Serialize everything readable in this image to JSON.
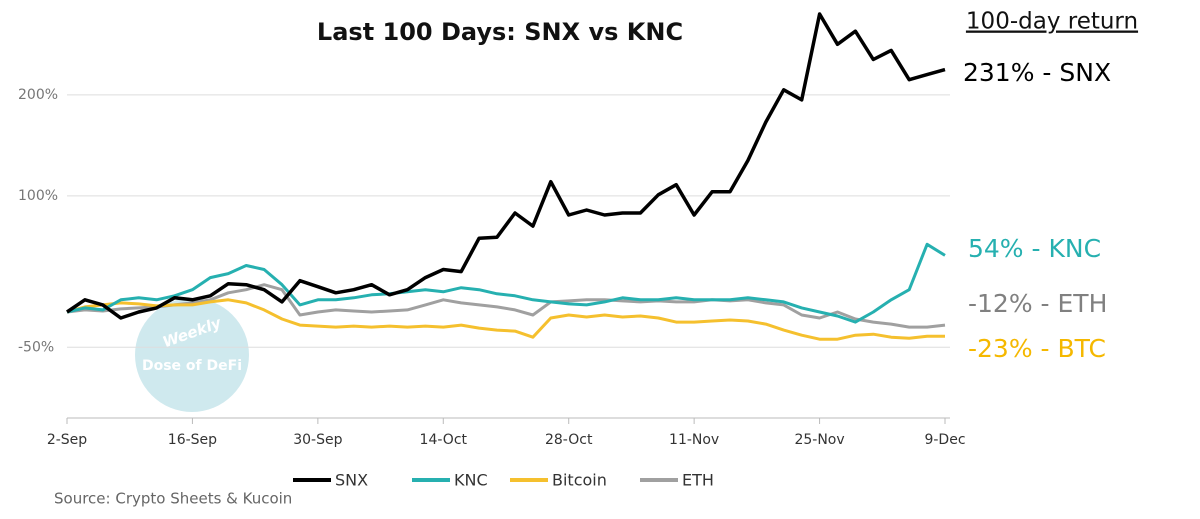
{
  "chart_data": {
    "type": "line",
    "title": "Last 100 Days: SNX vs KNC",
    "categories": [
      "2-Sep",
      null,
      null,
      null,
      null,
      null,
      null,
      "16-Sep",
      null,
      null,
      null,
      null,
      null,
      null,
      "30-Sep",
      null,
      null,
      null,
      null,
      null,
      null,
      "14-Oct",
      null,
      null,
      null,
      null,
      null,
      null,
      "28-Oct",
      null,
      null,
      null,
      null,
      null,
      null,
      "11-Nov",
      null,
      null,
      null,
      null,
      null,
      null,
      "25-Nov",
      null,
      null,
      null,
      null,
      null,
      null,
      "9-Dec"
    ],
    "series": [
      {
        "name": "SNX",
        "color": "#000000",
        "values": [
          -15,
          -3,
          -8,
          -21,
          -15,
          -11,
          -1,
          -3,
          1,
          13,
          12,
          7,
          -5,
          16,
          10,
          4,
          7,
          12,
          2,
          7,
          19,
          27,
          25,
          58,
          59,
          83,
          70,
          114,
          81,
          86,
          81,
          83,
          83,
          101,
          111,
          81,
          104,
          104,
          135,
          173,
          205,
          195,
          280,
          250,
          263,
          235,
          244,
          215,
          220,
          225
        ]
      },
      {
        "name": "KNC",
        "color": "#26b0b0",
        "values": [
          -15,
          -11,
          -13,
          -3,
          -1,
          -3,
          1,
          7,
          19,
          23,
          31,
          27,
          12,
          -8,
          -3,
          -3,
          -1,
          2,
          3,
          5,
          7,
          5,
          9,
          7,
          3,
          1,
          -3,
          -5,
          -7,
          -8,
          -5,
          -1,
          -3,
          -3,
          -1,
          -3,
          -3,
          -3,
          -1,
          -3,
          -5,
          -11,
          -15,
          -19,
          -25,
          -15,
          -3,
          7,
          52,
          41
        ]
      },
      {
        "name": "Bitcoin",
        "color": "#f5c02e",
        "values": [
          -15,
          -10,
          -8,
          -6,
          -7,
          -9,
          -8,
          -8,
          -5,
          -3,
          -6,
          -13,
          -22,
          -28,
          -29,
          -30,
          -29,
          -30,
          -29,
          -30,
          -29,
          -30,
          -28,
          -31,
          -33,
          -34,
          -40,
          -21,
          -18,
          -20,
          -18,
          -20,
          -19,
          -21,
          -25,
          -25,
          -24,
          -23,
          -24,
          -27,
          -33,
          -38,
          -42,
          -42,
          -38,
          -37,
          -40,
          -41,
          -39,
          -39
        ]
      },
      {
        "name": "ETH",
        "color": "#a0a0a0",
        "values": [
          -15,
          -13,
          -14,
          -12,
          -11,
          -10,
          -8,
          -6,
          -3,
          4,
          7,
          12,
          7,
          -18,
          -15,
          -13,
          -14,
          -15,
          -14,
          -13,
          -8,
          -3,
          -6,
          -8,
          -10,
          -13,
          -18,
          -5,
          -4,
          -3,
          -3,
          -4,
          -5,
          -4,
          -5,
          -5,
          -3,
          -4,
          -3,
          -6,
          -8,
          -18,
          -21,
          -15,
          -22,
          -25,
          -27,
          -30,
          -30,
          -28
        ]
      }
    ],
    "ylim": [
      -120,
      284
    ],
    "yticks": [
      {
        "value": -50,
        "label": "-50%"
      },
      {
        "value": 100,
        "label": "100%"
      },
      {
        "value": 200,
        "label": "200%"
      }
    ],
    "grid": true,
    "return_header": "100-day return",
    "annotations": [
      {
        "text": "231% - SNX",
        "color": "#000000"
      },
      {
        "text": "54% - KNC",
        "color": "#26b0b0"
      },
      {
        "text": "-12% - ETH",
        "color": "#808080"
      },
      {
        "text": "-23% - BTC",
        "color": "#f5b800"
      }
    ],
    "watermark": [
      "Weekly",
      "Dose of DeFi"
    ],
    "source": "Source: Crypto Sheets & Kucoin"
  }
}
